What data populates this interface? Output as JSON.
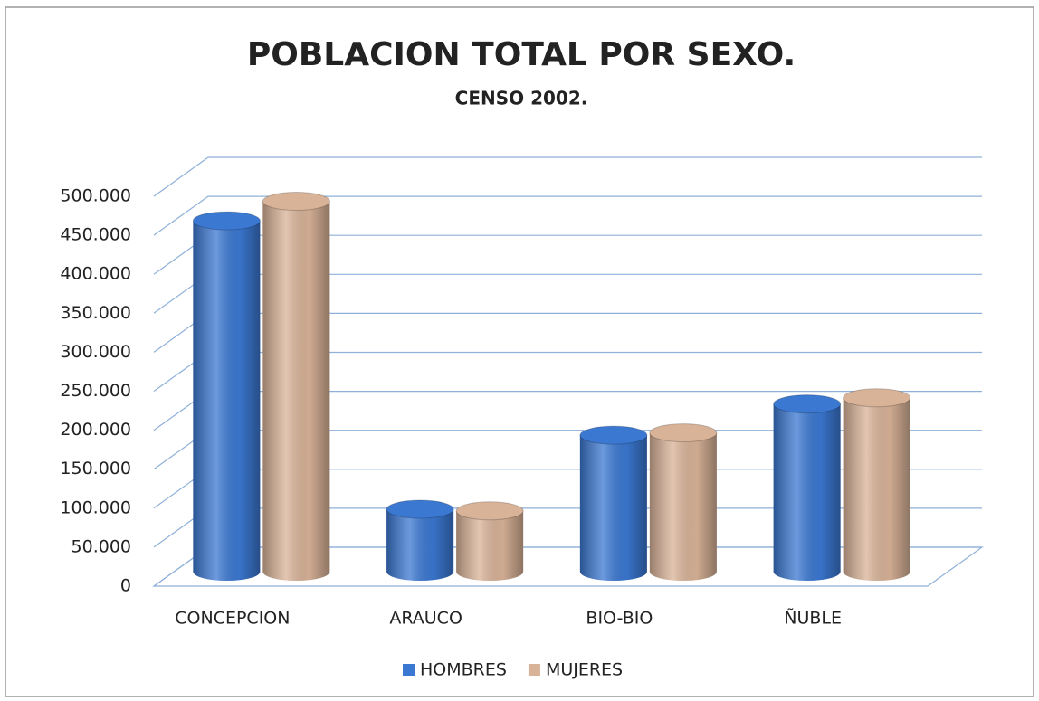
{
  "chart_data": {
    "type": "bar3d",
    "title": "POBLACION TOTAL POR SEXO.",
    "subtitle": "CENSO 2002.",
    "categories": [
      "CONCEPCION",
      "ARAUCO",
      "BIO-BIO",
      "ÑUBLE"
    ],
    "series": [
      {
        "name": "HOMBRES",
        "color": "#3b78d2",
        "values": [
          450000,
          80000,
          175000,
          215000
        ]
      },
      {
        "name": "MUJERES",
        "color": "#d9b398",
        "values": [
          475000,
          78000,
          178000,
          223000
        ]
      }
    ],
    "ylim": [
      0,
      500000
    ],
    "yticks": [
      0,
      {
        "value": 50000,
        "label": "50.000"
      },
      {
        "value": 100000,
        "label": "100.000"
      },
      {
        "value": 150000,
        "label": "150.000"
      },
      {
        "value": 200000,
        "label": "200.000"
      },
      {
        "value": 250000,
        "label": "250.000"
      },
      {
        "value": 300000,
        "label": "300.000"
      },
      {
        "value": 350000,
        "label": "350.000"
      },
      {
        "value": 400000,
        "label": "400.000"
      },
      {
        "value": 450000,
        "label": "450.000"
      },
      {
        "value": 500000,
        "label": "500.000"
      }
    ],
    "grid": true,
    "legend": "bottom"
  }
}
